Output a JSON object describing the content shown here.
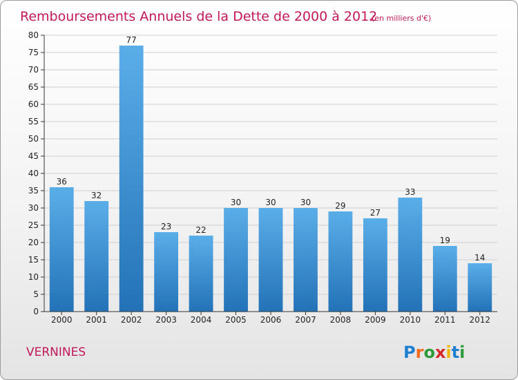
{
  "header": {
    "title": "Remboursements Annuels de la Dette de 2000 à 2012",
    "subtitle": "(en milliers d'€)"
  },
  "footer": {
    "place": "VERNINES",
    "logo": {
      "letters": [
        "P",
        "r",
        "o",
        "x",
        "i",
        "t",
        "i"
      ],
      "colors": [
        "#1f7fd1",
        "#f26a1b",
        "#2d9b3a",
        "#d62828",
        "#f2b705",
        "#1f7fd1",
        "#2d9b3a"
      ]
    }
  },
  "colors": {
    "bar_light": "#5aaee8",
    "bar_dark": "#2372b8",
    "grid": "#cfcfcf",
    "title": "#c0185a"
  },
  "chart_data": {
    "type": "bar",
    "title": "Remboursements Annuels de la Dette de 2000 à 2012",
    "subtitle": "(en milliers d'€)",
    "xlabel": "",
    "ylabel": "",
    "categories": [
      "2000",
      "2001",
      "2002",
      "2003",
      "2004",
      "2005",
      "2006",
      "2007",
      "2008",
      "2009",
      "2010",
      "2011",
      "2012"
    ],
    "values": [
      36,
      32,
      77,
      23,
      22,
      30,
      30,
      30,
      29,
      27,
      33,
      19,
      14
    ],
    "ylim": [
      0,
      80
    ],
    "yticks": [
      0,
      5,
      10,
      15,
      20,
      25,
      30,
      35,
      40,
      45,
      50,
      55,
      60,
      65,
      70,
      75,
      80
    ],
    "grid": true,
    "data_labels": true
  }
}
